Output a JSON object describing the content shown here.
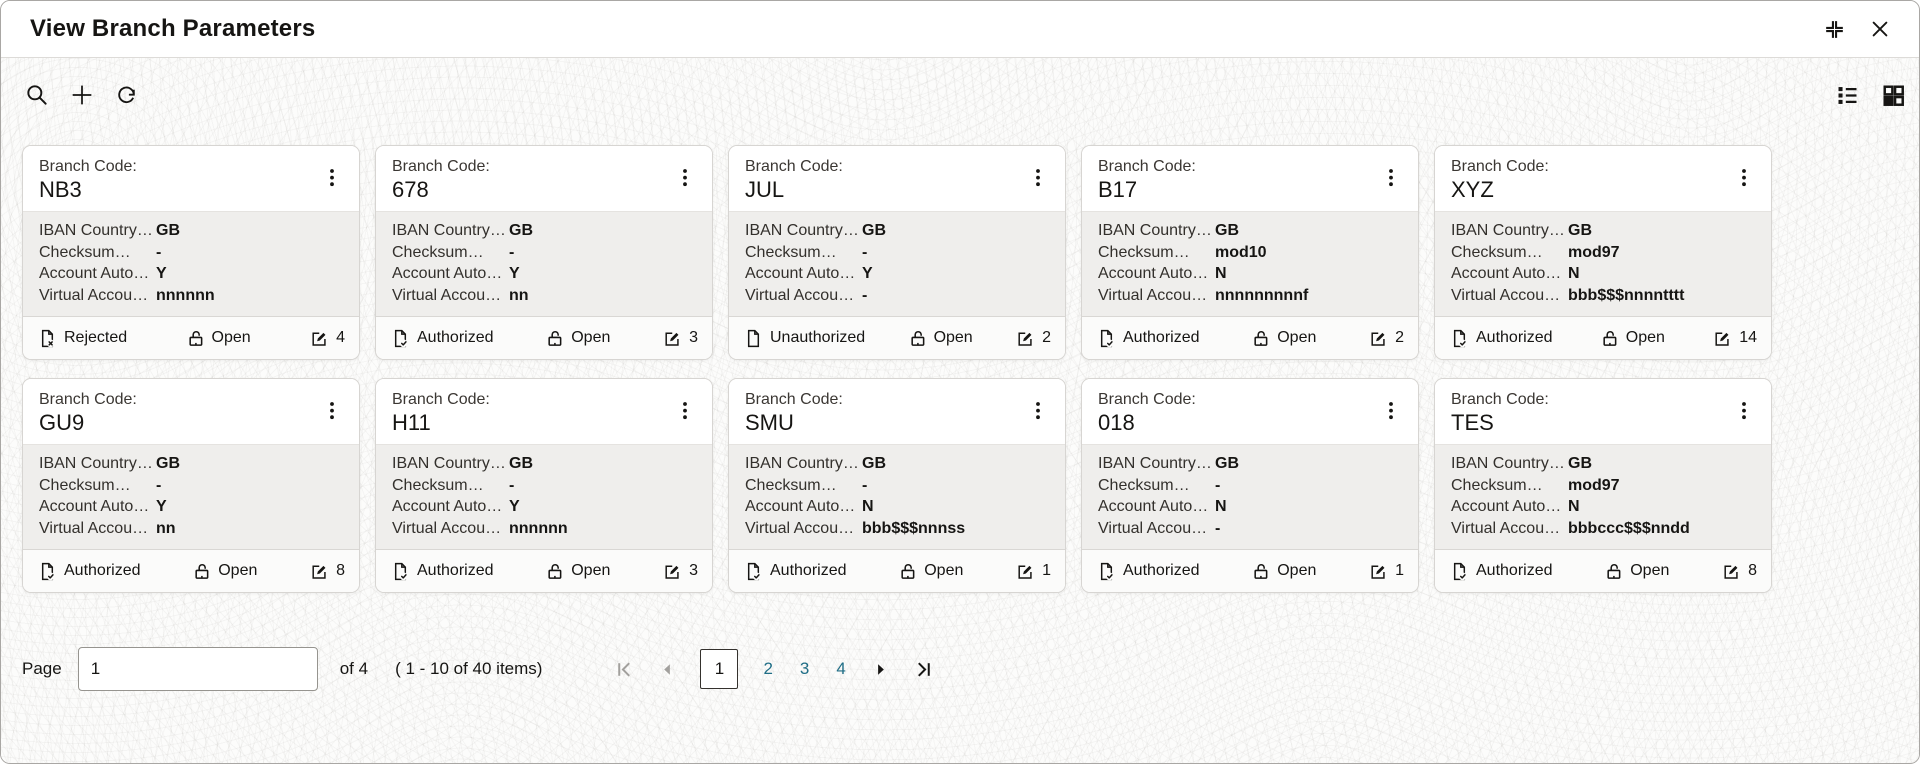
{
  "window": {
    "title": "View Branch Parameters"
  },
  "icons": {
    "search": "⌕",
    "add": "+",
    "refresh": "⟳",
    "list_view": "☰",
    "grid_view": "▦",
    "expand": "⛶",
    "close": "✕",
    "kebab": "⋮",
    "authorized": "🗎✓",
    "rejected": "🗎✕",
    "unauthorized": "🗎",
    "open_lock": "🔓",
    "edit": "✎",
    "first_page": "|◀",
    "previous_page": "◀",
    "next_page": "▶",
    "last_page": "▶|"
  },
  "branch_code_label": "Branch Code:",
  "card_field_labels": [
    "IBAN Country…",
    "Checksum…",
    "Account Auto…",
    "Virtual Accou…"
  ],
  "cards": [
    {
      "code": "NB3",
      "values": [
        "GB",
        "-",
        "Y",
        "nnnnnn"
      ],
      "status": "Rejected",
      "status_icon": "document-rejected-icon",
      "lock_status": "Open",
      "edit_count": "4"
    },
    {
      "code": "678",
      "values": [
        "GB",
        "-",
        "Y",
        "nn"
      ],
      "status": "Authorized",
      "status_icon": "document-check-icon",
      "lock_status": "Open",
      "edit_count": "3"
    },
    {
      "code": "JUL",
      "values": [
        "GB",
        "-",
        "Y",
        "-"
      ],
      "status": "Unauthorized",
      "status_icon": "document-plain-icon",
      "lock_status": "Open",
      "edit_count": "2"
    },
    {
      "code": "B17",
      "values": [
        "GB",
        "mod10",
        "N",
        "nnnnnnnnnf"
      ],
      "status": "Authorized",
      "status_icon": "document-check-icon",
      "lock_status": "Open",
      "edit_count": "2"
    },
    {
      "code": "XYZ",
      "values": [
        "GB",
        "mod97",
        "N",
        "bbb$$$nnnntttt"
      ],
      "status": "Authorized",
      "status_icon": "document-check-icon",
      "lock_status": "Open",
      "edit_count": "14"
    },
    {
      "code": "GU9",
      "values": [
        "GB",
        "-",
        "Y",
        "nn"
      ],
      "status": "Authorized",
      "status_icon": "document-check-icon",
      "lock_status": "Open",
      "edit_count": "8"
    },
    {
      "code": "H11",
      "values": [
        "GB",
        "-",
        "Y",
        "nnnnnn"
      ],
      "status": "Authorized",
      "status_icon": "document-check-icon",
      "lock_status": "Open",
      "edit_count": "3"
    },
    {
      "code": "SMU",
      "values": [
        "GB",
        "-",
        "N",
        "bbb$$$nnnss"
      ],
      "status": "Authorized",
      "status_icon": "document-check-icon",
      "lock_status": "Open",
      "edit_count": "1"
    },
    {
      "code": "018",
      "values": [
        "GB",
        "-",
        "N",
        "-"
      ],
      "status": "Authorized",
      "status_icon": "document-check-icon",
      "lock_status": "Open",
      "edit_count": "1"
    },
    {
      "code": "TES",
      "values": [
        "GB",
        "mod97",
        "N",
        "bbbccc$$$nndd"
      ],
      "status": "Authorized",
      "status_icon": "document-check-icon",
      "lock_status": "Open",
      "edit_count": "8"
    }
  ],
  "pagination": {
    "page_label": "Page",
    "page_input_value": "1",
    "of_text": "of 4",
    "items_text": "( 1 - 10 of 40 items)",
    "pages": [
      "1",
      "2",
      "3",
      "4"
    ],
    "current_page": "1"
  },
  "colors": {
    "link_teal": "#206e86",
    "text_dark": "#161513",
    "card_body_bg": "#efeeec"
  }
}
